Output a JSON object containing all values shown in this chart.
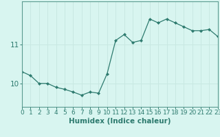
{
  "title": "",
  "xlabel": "Humidex (Indice chaleur)",
  "ylabel": "",
  "x_values": [
    0,
    1,
    2,
    3,
    4,
    5,
    6,
    7,
    8,
    9,
    10,
    11,
    12,
    13,
    14,
    15,
    16,
    17,
    18,
    19,
    20,
    21,
    22,
    23
  ],
  "y_values": [
    10.3,
    10.2,
    10.0,
    10.0,
    9.9,
    9.85,
    9.78,
    9.7,
    9.78,
    9.75,
    10.25,
    11.1,
    11.25,
    11.05,
    11.1,
    11.65,
    11.55,
    11.65,
    11.55,
    11.45,
    11.35,
    11.35,
    11.38,
    11.2
  ],
  "line_color": "#2d7a6e",
  "marker": "D",
  "marker_size": 2.2,
  "background_color": "#d8f5f0",
  "grid_color": "#c8e8e2",
  "axis_color": "#5a9a90",
  "tick_color": "#2d7a6e",
  "label_color": "#2d7a6e",
  "ylim": [
    9.4,
    12.1
  ],
  "yticks": [
    10,
    11
  ],
  "xlim": [
    0,
    23
  ],
  "xlabel_fontsize": 7.5,
  "tick_fontsize": 6.5,
  "ytick_fontsize": 7.5,
  "lw": 0.9
}
